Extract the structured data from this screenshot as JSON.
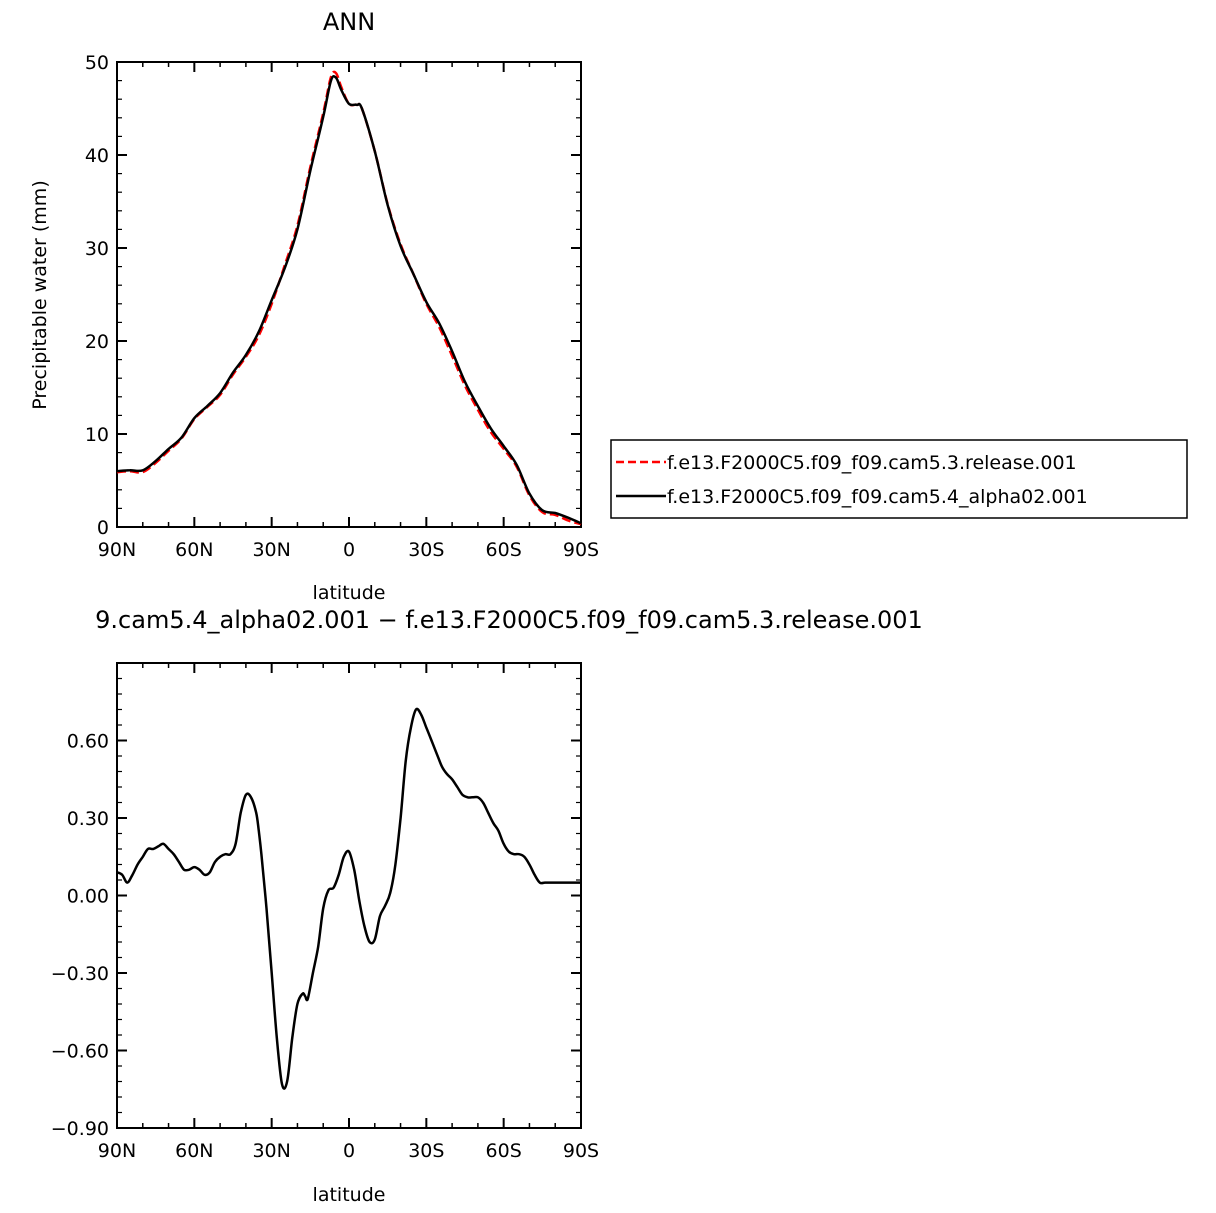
{
  "chart_data": [
    {
      "type": "line",
      "title": "ANN",
      "xlabel": "latitude",
      "ylabel": "Precipitable water (mm)",
      "x_direction": "north-to-south",
      "xlim": [
        90,
        -90
      ],
      "ylim": [
        0,
        50
      ],
      "xticks": [
        {
          "value": 90,
          "label": "90N"
        },
        {
          "value": 60,
          "label": "60N"
        },
        {
          "value": 30,
          "label": "30N"
        },
        {
          "value": 0,
          "label": "0"
        },
        {
          "value": -30,
          "label": "30S"
        },
        {
          "value": -60,
          "label": "60S"
        },
        {
          "value": -90,
          "label": "90S"
        }
      ],
      "yticks": [
        {
          "value": 0,
          "label": "0"
        },
        {
          "value": 10,
          "label": "10"
        },
        {
          "value": 20,
          "label": "20"
        },
        {
          "value": 30,
          "label": "30"
        },
        {
          "value": 40,
          "label": "40"
        },
        {
          "value": 50,
          "label": "50"
        }
      ],
      "legend_position": "right",
      "series": [
        {
          "name": "f.e13.F2000C5.f09_f09.cam5.3.release.001",
          "color": "#ff0000",
          "style": "dashed",
          "x": [
            90,
            85,
            80,
            75,
            70,
            65,
            60,
            55,
            50,
            45,
            40,
            35,
            30,
            25,
            20,
            15,
            10,
            7,
            5,
            3,
            0,
            -3,
            -5,
            -10,
            -15,
            -20,
            -25,
            -30,
            -35,
            -40,
            -45,
            -50,
            -55,
            -60,
            -65,
            -70,
            -75,
            -80,
            -85,
            -90
          ],
          "y": [
            5.9,
            6.0,
            5.9,
            6.9,
            8.2,
            9.5,
            11.6,
            12.9,
            14.2,
            16.4,
            18.3,
            20.6,
            24.0,
            28.1,
            32.4,
            38.7,
            44.5,
            48.4,
            48.8,
            47.3,
            45.5,
            45.4,
            45.0,
            40.4,
            34.7,
            30.4,
            27.2,
            24.0,
            21.5,
            18.4,
            15.2,
            12.6,
            10.2,
            8.4,
            6.5,
            3.4,
            1.6,
            1.3,
            0.7,
            0.3
          ]
        },
        {
          "name": "f.e13.F2000C5.f09_f09.cam5.4_alpha02.001",
          "color": "#000000",
          "style": "solid",
          "x": [
            90,
            85,
            80,
            75,
            70,
            65,
            60,
            55,
            50,
            45,
            40,
            35,
            30,
            25,
            20,
            15,
            10,
            7,
            5,
            3,
            0,
            -3,
            -5,
            -10,
            -15,
            -20,
            -25,
            -30,
            -35,
            -40,
            -45,
            -50,
            -55,
            -60,
            -65,
            -70,
            -75,
            -80,
            -85,
            -90
          ],
          "y": [
            6.0,
            6.1,
            6.1,
            7.1,
            8.4,
            9.6,
            11.7,
            13.0,
            14.4,
            16.6,
            18.5,
            21.0,
            24.4,
            27.8,
            32.0,
            38.3,
            44.1,
            48.0,
            48.3,
            47.0,
            45.5,
            45.4,
            45.0,
            40.4,
            34.6,
            30.2,
            27.2,
            24.2,
            21.9,
            18.9,
            15.6,
            13.0,
            10.6,
            8.7,
            6.7,
            3.6,
            1.8,
            1.5,
            1.0,
            0.4
          ]
        }
      ]
    },
    {
      "type": "line",
      "title": "9.cam5.4_alpha02.001  −  f.e13.F2000C5.f09_f09.cam5.3.release.001",
      "xlabel": "latitude",
      "ylabel": "",
      "x_direction": "north-to-south",
      "xlim": [
        90,
        -90
      ],
      "ylim": [
        -0.9,
        0.9
      ],
      "xticks": [
        {
          "value": 90,
          "label": "90N"
        },
        {
          "value": 60,
          "label": "60N"
        },
        {
          "value": 30,
          "label": "30N"
        },
        {
          "value": 0,
          "label": "0"
        },
        {
          "value": -30,
          "label": "30S"
        },
        {
          "value": -60,
          "label": "60S"
        },
        {
          "value": -90,
          "label": "90S"
        }
      ],
      "yticks": [
        {
          "value": -0.9,
          "label": "−0.90"
        },
        {
          "value": -0.6,
          "label": "−0.60"
        },
        {
          "value": -0.3,
          "label": "−0.30"
        },
        {
          "value": 0.0,
          "label": "0.00"
        },
        {
          "value": 0.3,
          "label": "0.30"
        },
        {
          "value": 0.6,
          "label": "0.60"
        }
      ],
      "series": [
        {
          "name": "",
          "color": "#000000",
          "style": "solid",
          "x": [
            90,
            88,
            86,
            84,
            82,
            80,
            78,
            76,
            74,
            72,
            70,
            68,
            66,
            64,
            62,
            60,
            58,
            56,
            54,
            52,
            50,
            48,
            46,
            44,
            42,
            40,
            38,
            36,
            35,
            34,
            32,
            30,
            28,
            26,
            24,
            22,
            20,
            18,
            17,
            16,
            14,
            12,
            10,
            8,
            6,
            4,
            2,
            0,
            -2,
            -4,
            -6,
            -8,
            -10,
            -12,
            -14,
            -16,
            -18,
            -20,
            -22,
            -24,
            -26,
            -28,
            -30,
            -32,
            -34,
            -36,
            -38,
            -40,
            -42,
            -44,
            -46,
            -48,
            -50,
            -52,
            -54,
            -56,
            -58,
            -60,
            -62,
            -64,
            -66,
            -68,
            -70,
            -72,
            -74,
            -76,
            -78,
            -80,
            -82,
            -84,
            -86,
            -88,
            -90
          ],
          "y": [
            0.09,
            0.08,
            0.05,
            0.08,
            0.12,
            0.15,
            0.18,
            0.18,
            0.19,
            0.2,
            0.18,
            0.16,
            0.13,
            0.1,
            0.1,
            0.11,
            0.1,
            0.08,
            0.09,
            0.13,
            0.15,
            0.16,
            0.16,
            0.2,
            0.32,
            0.39,
            0.38,
            0.32,
            0.25,
            0.16,
            -0.05,
            -0.3,
            -0.55,
            -0.73,
            -0.72,
            -0.55,
            -0.42,
            -0.38,
            -0.39,
            -0.4,
            -0.3,
            -0.2,
            -0.05,
            0.02,
            0.03,
            0.08,
            0.15,
            0.17,
            0.1,
            -0.02,
            -0.12,
            -0.18,
            -0.17,
            -0.08,
            -0.04,
            0.01,
            0.12,
            0.3,
            0.52,
            0.65,
            0.72,
            0.7,
            0.65,
            0.6,
            0.55,
            0.5,
            0.47,
            0.45,
            0.42,
            0.39,
            0.38,
            0.38,
            0.38,
            0.36,
            0.32,
            0.28,
            0.25,
            0.2,
            0.17,
            0.16,
            0.16,
            0.15,
            0.12,
            0.08,
            0.05,
            0.05,
            0.05,
            0.05,
            0.05,
            0.05,
            0.05,
            0.05,
            0.05
          ]
        }
      ]
    }
  ]
}
